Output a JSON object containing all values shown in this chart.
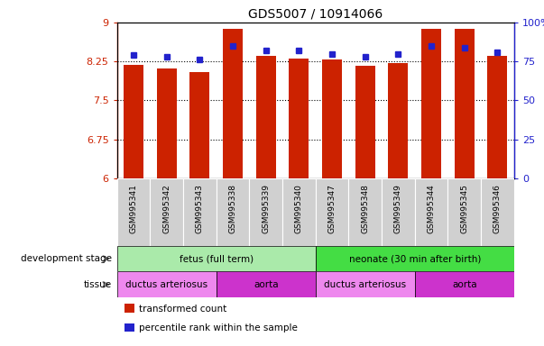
{
  "title": "GDS5007 / 10914066",
  "samples": [
    "GSM995341",
    "GSM995342",
    "GSM995343",
    "GSM995338",
    "GSM995339",
    "GSM995340",
    "GSM995347",
    "GSM995348",
    "GSM995349",
    "GSM995344",
    "GSM995345",
    "GSM995346"
  ],
  "bar_values": [
    8.18,
    8.12,
    8.05,
    8.88,
    8.35,
    8.3,
    8.28,
    8.16,
    8.21,
    8.87,
    8.87,
    8.35
  ],
  "percentile_values": [
    79,
    78,
    76,
    85,
    82,
    82,
    80,
    78,
    80,
    85,
    84,
    81
  ],
  "bar_bottom": 6.0,
  "ylim_left": [
    6.0,
    9.0
  ],
  "ylim_right": [
    0,
    100
  ],
  "yticks_left": [
    6.0,
    6.75,
    7.5,
    8.25,
    9.0
  ],
  "yticks_right": [
    0,
    25,
    50,
    75,
    100
  ],
  "ytick_labels_left": [
    "6",
    "6.75",
    "7.5",
    "8.25",
    "9"
  ],
  "ytick_labels_right": [
    "0",
    "25",
    "50",
    "75",
    "100%"
  ],
  "bar_color": "#cc2200",
  "percentile_color": "#2222cc",
  "grid_yticks": [
    6.75,
    7.5,
    8.25
  ],
  "development_stages": [
    {
      "label": "fetus (full term)",
      "start": 0,
      "end": 6,
      "color": "#aaeaaa"
    },
    {
      "label": "neonate (30 min after birth)",
      "start": 6,
      "end": 12,
      "color": "#44dd44"
    }
  ],
  "tissues": [
    {
      "label": "ductus arteriosus",
      "start": 0,
      "end": 3,
      "color": "#ee88ee"
    },
    {
      "label": "aorta",
      "start": 3,
      "end": 6,
      "color": "#cc33cc"
    },
    {
      "label": "ductus arteriosus",
      "start": 6,
      "end": 9,
      "color": "#ee88ee"
    },
    {
      "label": "aorta",
      "start": 9,
      "end": 12,
      "color": "#cc33cc"
    }
  ],
  "legend_items": [
    {
      "label": "transformed count",
      "color": "#cc2200"
    },
    {
      "label": "percentile rank within the sample",
      "color": "#2222cc"
    }
  ],
  "left_axis_color": "#cc2200",
  "right_axis_color": "#2222cc",
  "label_row_color": "#d0d0d0",
  "dev_stage_label": "development stage",
  "tissue_label": "tissue"
}
